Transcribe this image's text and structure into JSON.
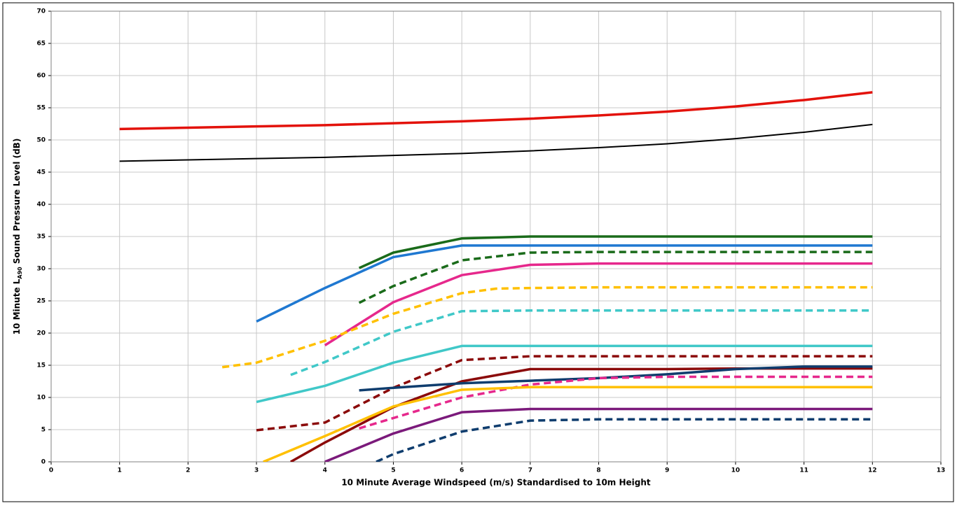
{
  "chart_data": {
    "type": "line",
    "xlabel": "10 Minute Average Windspeed (m/s) Standardised to 10m Height",
    "ylabel_parts": [
      "10 Minute L",
      "A90",
      " Sound Pressure Level (dB)"
    ],
    "xlim": [
      0,
      13
    ],
    "xticks": [
      0,
      1,
      2,
      3,
      4,
      5,
      6,
      7,
      8,
      9,
      10,
      11,
      12,
      13
    ],
    "ylim": [
      0,
      70
    ],
    "yticks": [
      0,
      5,
      10,
      15,
      20,
      25,
      30,
      35,
      40,
      45,
      50,
      55,
      60,
      65,
      70
    ],
    "grid": true,
    "series": [
      {
        "color": "#e3120b",
        "dash": false,
        "width": 3.5,
        "x": [
          1,
          2,
          3,
          4,
          5,
          6,
          7,
          8,
          9,
          10,
          11,
          12
        ],
        "values": [
          51.7,
          51.9,
          52.1,
          52.3,
          52.6,
          52.9,
          53.3,
          53.8,
          54.4,
          55.2,
          56.2,
          57.4
        ]
      },
      {
        "color": "#000000",
        "dash": false,
        "width": 2,
        "x": [
          1,
          2,
          3,
          4,
          5,
          6,
          7,
          8,
          9,
          10,
          11,
          12
        ],
        "values": [
          46.7,
          46.9,
          47.1,
          47.3,
          47.6,
          47.9,
          48.3,
          48.8,
          49.4,
          50.2,
          51.2,
          52.4
        ]
      },
      {
        "color": "#1a6b1a",
        "dash": false,
        "width": 3.5,
        "x": [
          4.5,
          5,
          6,
          7,
          8,
          9,
          10,
          11,
          12
        ],
        "values": [
          30.1,
          32.5,
          34.7,
          35.0,
          35.0,
          35.0,
          35.0,
          35.0,
          35.0
        ]
      },
      {
        "color": "#1f78d1",
        "dash": false,
        "width": 3.5,
        "x": [
          3,
          4,
          5,
          6,
          7,
          8,
          9,
          10,
          11,
          12
        ],
        "values": [
          21.8,
          27.0,
          31.8,
          33.6,
          33.6,
          33.6,
          33.6,
          33.6,
          33.6,
          33.6
        ]
      },
      {
        "color": "#1a6b1a",
        "dash": true,
        "width": 3.5,
        "x": [
          4.5,
          5,
          6,
          7,
          8,
          9,
          10,
          11,
          12
        ],
        "values": [
          24.7,
          27.3,
          31.3,
          32.5,
          32.6,
          32.6,
          32.6,
          32.6,
          32.6
        ]
      },
      {
        "color": "#e6288c",
        "dash": false,
        "width": 3.5,
        "x": [
          4,
          5,
          6,
          7,
          8,
          9,
          10,
          11,
          12
        ],
        "values": [
          18.1,
          24.8,
          29.0,
          30.6,
          30.8,
          30.8,
          30.8,
          30.8,
          30.8
        ]
      },
      {
        "color": "#ffc000",
        "dash": true,
        "width": 3.5,
        "x": [
          2.5,
          3,
          4,
          5,
          6,
          6.5,
          7,
          8,
          9,
          10,
          11,
          12
        ],
        "values": [
          14.7,
          15.4,
          18.8,
          23.0,
          26.2,
          26.9,
          27.0,
          27.1,
          27.1,
          27.1,
          27.1,
          27.1
        ]
      },
      {
        "color": "#40c8c8",
        "dash": true,
        "width": 3.5,
        "x": [
          3.5,
          4,
          5,
          6,
          7,
          8,
          9,
          10,
          11,
          12
        ],
        "values": [
          13.5,
          15.5,
          20.2,
          23.4,
          23.5,
          23.5,
          23.5,
          23.5,
          23.5,
          23.5
        ]
      },
      {
        "color": "#40c8c8",
        "dash": false,
        "width": 3.5,
        "x": [
          3,
          4,
          5,
          6,
          7,
          8,
          9,
          10,
          11,
          12
        ],
        "values": [
          9.3,
          11.8,
          15.4,
          18.0,
          18.0,
          18.0,
          18.0,
          18.0,
          18.0,
          18.0
        ]
      },
      {
        "color": "#8b0a0a",
        "dash": true,
        "width": 3.5,
        "x": [
          3,
          4,
          5,
          6,
          7,
          8,
          9,
          10,
          11,
          12
        ],
        "values": [
          4.9,
          6.1,
          11.5,
          15.8,
          16.4,
          16.4,
          16.4,
          16.4,
          16.4,
          16.4
        ]
      },
      {
        "color": "#8b0a0a",
        "dash": false,
        "width": 3.5,
        "x": [
          3.5,
          4,
          5,
          6,
          7,
          8,
          9,
          10,
          11,
          12
        ],
        "values": [
          0,
          3.0,
          8.5,
          12.5,
          14.4,
          14.4,
          14.4,
          14.5,
          14.5,
          14.5
        ]
      },
      {
        "color": "#0f3d6e",
        "dash": false,
        "width": 3.5,
        "x": [
          4.5,
          5,
          6,
          7,
          8,
          9,
          10,
          11,
          12
        ],
        "values": [
          11.1,
          11.5,
          12.2,
          12.6,
          13.0,
          13.6,
          14.4,
          14.8,
          14.8
        ]
      },
      {
        "color": "#e6288c",
        "dash": true,
        "width": 3.5,
        "x": [
          4.5,
          5,
          6,
          7,
          8,
          9,
          10,
          11,
          12
        ],
        "values": [
          5.2,
          6.8,
          10.0,
          12.0,
          13.0,
          13.2,
          13.2,
          13.2,
          13.2
        ]
      },
      {
        "color": "#ffc000",
        "dash": false,
        "width": 3.5,
        "x": [
          3.1,
          4,
          5,
          6,
          7,
          8,
          9,
          10,
          11,
          12
        ],
        "values": [
          0,
          4.0,
          8.6,
          11.2,
          11.6,
          11.6,
          11.6,
          11.6,
          11.6,
          11.6
        ]
      },
      {
        "color": "#7b1a7b",
        "dash": false,
        "width": 3.5,
        "x": [
          4,
          5,
          6,
          7,
          8,
          9,
          10,
          11,
          12
        ],
        "values": [
          0,
          4.4,
          7.7,
          8.2,
          8.2,
          8.2,
          8.2,
          8.2,
          8.2
        ]
      },
      {
        "color": "#0f3d6e",
        "dash": true,
        "width": 3.5,
        "x": [
          4.75,
          5,
          6,
          7,
          8,
          9,
          10,
          11,
          12
        ],
        "values": [
          0,
          1.2,
          4.7,
          6.4,
          6.6,
          6.6,
          6.6,
          6.6,
          6.6
        ]
      }
    ]
  }
}
